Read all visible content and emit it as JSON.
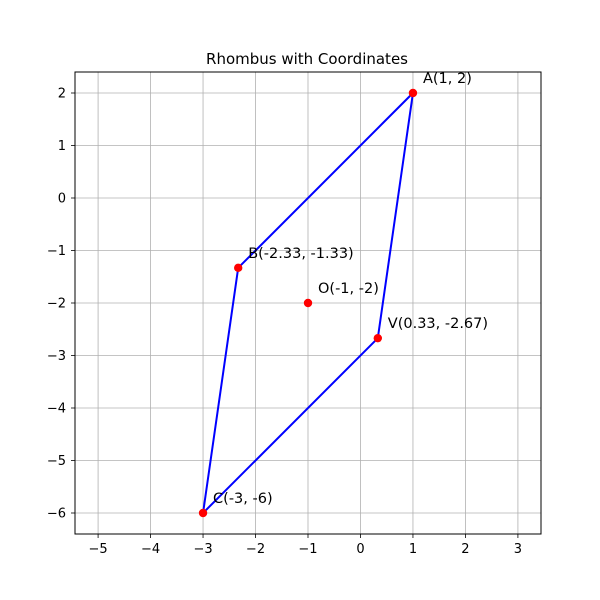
{
  "chart_data": {
    "type": "scatter",
    "title": "Rhombus with Coordinates",
    "xlabel": "",
    "ylabel": "",
    "xlim": [
      -5.44,
      3.44
    ],
    "ylim": [
      -6.4,
      2.4
    ],
    "xticks": [
      -5,
      -4,
      -3,
      -2,
      -1,
      0,
      1,
      2,
      3
    ],
    "yticks": [
      -6,
      -5,
      -4,
      -3,
      -2,
      -1,
      0,
      1,
      2
    ],
    "grid": true,
    "polygon": {
      "color": "#0000ff",
      "vertices": [
        "A",
        "B",
        "C",
        "V"
      ]
    },
    "points": [
      {
        "id": "A",
        "x": 1,
        "y": 2,
        "label": "A(1, 2)"
      },
      {
        "id": "B",
        "x": -2.33,
        "y": -1.33,
        "label": "B(-2.33, -1.33)"
      },
      {
        "id": "C",
        "x": -3,
        "y": -6,
        "label": "C(-3, -6)"
      },
      {
        "id": "V",
        "x": 0.33,
        "y": -2.67,
        "label": "V(0.33, -2.67)"
      },
      {
        "id": "O",
        "x": -1,
        "y": -2,
        "label": "O(-1, -2)"
      }
    ],
    "point_color": "#ff0000"
  }
}
